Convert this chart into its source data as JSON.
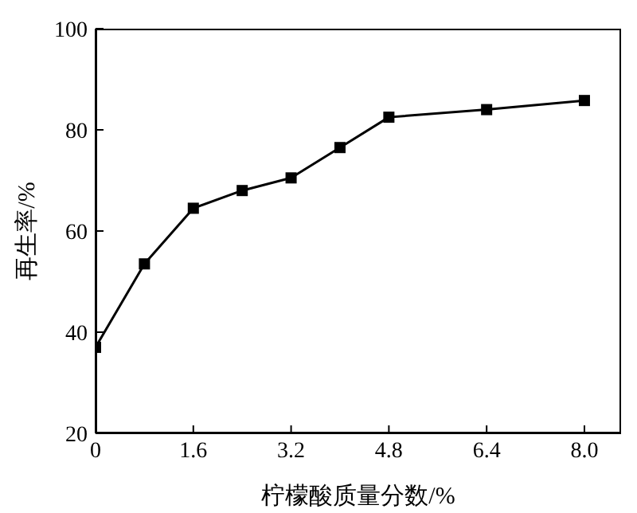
{
  "chart_data": {
    "type": "line",
    "xlabel": "柠檬酸质量分数/%",
    "ylabel": "再生率/%",
    "x": [
      0,
      0.8,
      1.6,
      2.4,
      3.2,
      4.0,
      4.8,
      6.4,
      8.0
    ],
    "series": [
      {
        "color": "#000000",
        "values": [
          37,
          53.5,
          64.5,
          68,
          70.5,
          76.5,
          82.5,
          84,
          85.8
        ]
      }
    ],
    "xlim": [
      0,
      8.6
    ],
    "xticks": [
      0,
      1.6,
      3.2,
      4.8,
      6.4,
      {
        "value": 8.0,
        "label": "8.0"
      }
    ],
    "ylim": [
      20,
      100
    ],
    "yticks": [
      20,
      40,
      60,
      80,
      100
    ],
    "marker": "square",
    "line_style": "solid",
    "grid": false,
    "legend": false
  }
}
